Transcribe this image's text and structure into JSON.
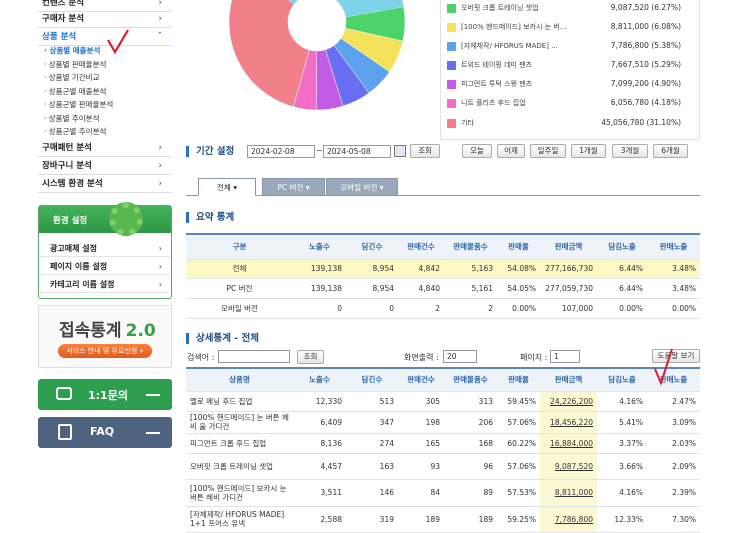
{
  "sidebar": {
    "menu_top": [
      "컨텐츠 분석",
      "구매자 분석",
      "상품 분석"
    ],
    "sub_menu": [
      "상품별 매출분석",
      "상품별 판매율분석",
      "상품별 기간비교",
      "상품군별 매출분석",
      "상품군별 판매율분석",
      "상품별 추이분석",
      "상품군별 추이분석"
    ],
    "menu_bottom": [
      "구매패턴 분석",
      "장바구니 분석",
      "시스템 환경 분석"
    ],
    "settings": {
      "title": "환경 설정",
      "items": [
        "광고매체 설정",
        "페이지 이름 설정",
        "카테고리 이름 설정"
      ]
    },
    "banner": {
      "title": "접속통계",
      "version": "2.0",
      "button": "서비스 안내 및 유료신청 »"
    },
    "inquiry": "1:1문의",
    "faq": "FAQ"
  },
  "pie": {
    "items": [
      {
        "name": "오버핏 크롭 트레이닝 셋업",
        "color": "#4cd46a",
        "value": 6.27,
        "value_label": "9,087,520 (6.27%)"
      },
      {
        "name": "[100% 핸드메이드] 보카시 눈 버...",
        "color": "#f3e25a",
        "value": 6.08,
        "value_label": "8,811,000 (6.08%)"
      },
      {
        "name": "[자체제작/ HFORUS MADE] ...",
        "color": "#5ea1ee",
        "value": 5.38,
        "value_label": "7,786,800 (5.38%)"
      },
      {
        "name": "트위드 테이핑 데미 팬츠",
        "color": "#6a6ef0",
        "value": 5.29,
        "value_label": "7,667,510 (5.29%)"
      },
      {
        "name": "피그먼트 투턱 스웻 팬츠",
        "color": "#c25ce6",
        "value": 4.9,
        "value_label": "7,099,200 (4.90%)"
      },
      {
        "name": "니트 플리츠 후드 집업",
        "color": "#f26ec4",
        "value": 4.18,
        "value_label": "6,056,780 (4.18%)"
      },
      {
        "name": "기타",
        "color": "#f2808a",
        "value": 31.1,
        "value_label": "45,056,780 (31.10%)"
      }
    ]
  },
  "period": {
    "label": "기간 설정",
    "start": "2024-02-08",
    "separator": "~",
    "end": "2024-05-08",
    "search": "조회",
    "quick": [
      "오늘",
      "어제",
      "일주일",
      "1개월",
      "3개월",
      "6개월"
    ]
  },
  "tabs": [
    "전체",
    "PC 버전",
    "모바일 버전"
  ],
  "summary": {
    "title": "요약 통계",
    "headers": [
      "구분",
      "노출수",
      "담긴수",
      "판매건수",
      "판매물품수",
      "판매율",
      "판매금액",
      "담김노출",
      "판매노출"
    ],
    "rows": [
      [
        "전체",
        "139,138",
        "8,954",
        "4,842",
        "5,163",
        "54.08%",
        "277,166,730",
        "6.44%",
        "3.48%"
      ],
      [
        "PC 버전",
        "139,138",
        "8,954",
        "4,840",
        "5,161",
        "54.05%",
        "277,059,730",
        "6.44%",
        "3.48%"
      ],
      [
        "모바일 버전",
        "0",
        "0",
        "2",
        "2",
        "0.00%",
        "107,000",
        "0.00%",
        "0.00%"
      ]
    ]
  },
  "detail": {
    "title": "상세통계 - 전체",
    "search_label": "검색어 :",
    "search": "조회",
    "rows_label": "화면출력 :",
    "rows_value": "20",
    "page_label": "페이지 :",
    "page_value": "1",
    "help": "도움말 보기",
    "headers": [
      "상품명",
      "노출수",
      "담긴수",
      "판매건수",
      "판매물품수",
      "판매율",
      "판매금액",
      "담김노출",
      "판매노출"
    ],
    "rows": [
      [
        "멜로 메닝 후드 집업",
        "12,330",
        "513",
        "305",
        "313",
        "59.45%",
        "24,226,200",
        "4.16%",
        "2.47%"
      ],
      [
        "[100% 핸드메이드] 눈 버튼 헤비 울 가디건",
        "6,409",
        "347",
        "198",
        "206",
        "57.06%",
        "18,456,220",
        "5.41%",
        "3.09%"
      ],
      [
        "피그먼트 크롭 후드 집업",
        "8,136",
        "274",
        "165",
        "168",
        "60.22%",
        "16,884,000",
        "3.37%",
        "2.03%"
      ],
      [
        "오버핏 크롭 트레이닝 셋업",
        "4,457",
        "163",
        "93",
        "96",
        "57.06%",
        "9,087,520",
        "3.66%",
        "2.09%"
      ],
      [
        "[100% 핸드메이드] 보카시 눈 버튼 헤비 가디건",
        "3,511",
        "146",
        "84",
        "89",
        "57.53%",
        "8,811,000",
        "4.16%",
        "2.39%"
      ],
      [
        "[자체제작/ HFORUS MADE] 1+1 프어스 유넥",
        "2,588",
        "319",
        "189",
        "189",
        "59.25%",
        "7,786,800",
        "12.33%",
        "7.30%"
      ]
    ]
  }
}
